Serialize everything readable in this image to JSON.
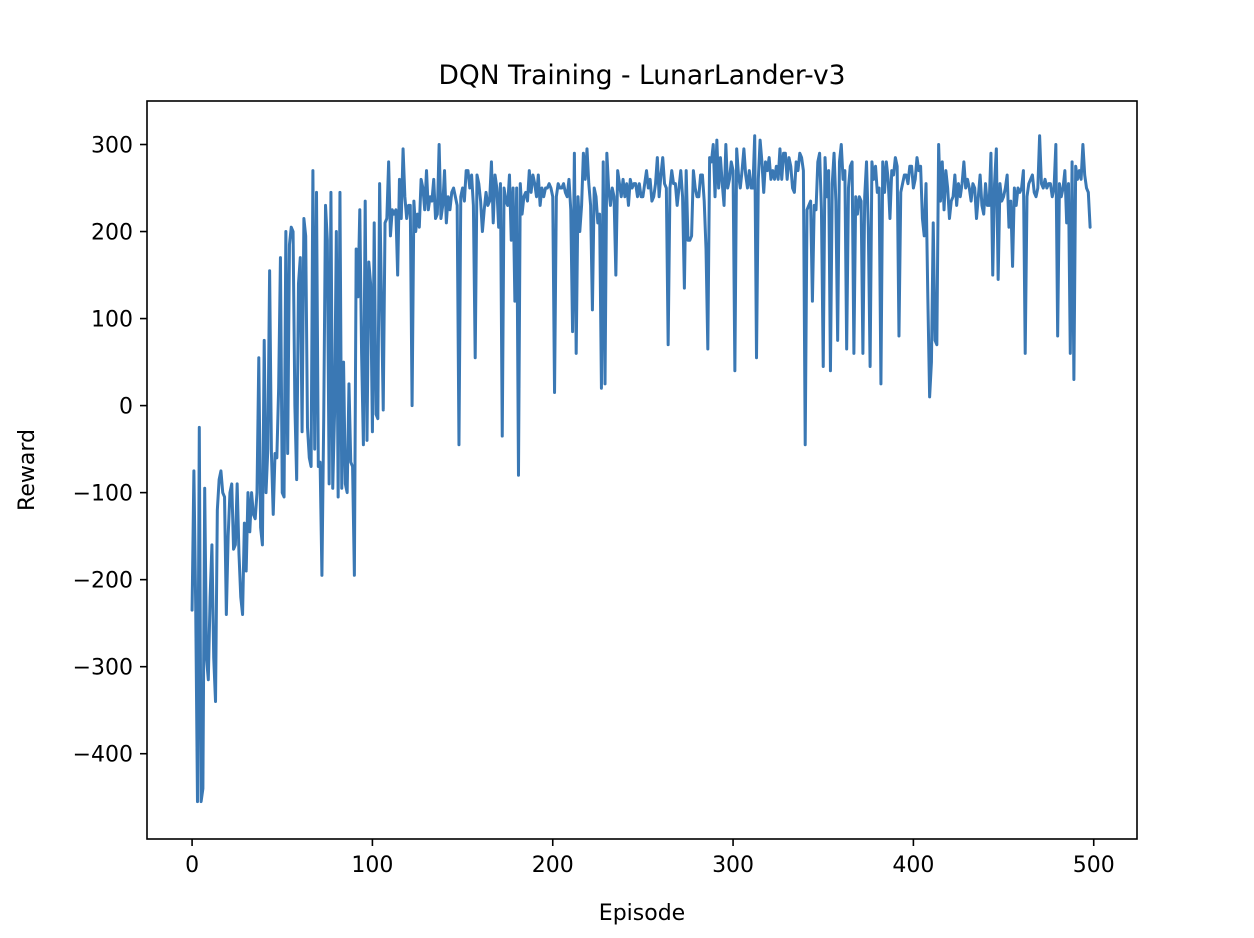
{
  "chart_data": {
    "type": "line",
    "title": "DQN Training - LunarLander-v3",
    "xlabel": "Episode",
    "ylabel": "Reward",
    "xlim": [
      -25,
      524
    ],
    "ylim": [
      -498,
      350
    ],
    "xticks": [
      0,
      100,
      200,
      300,
      400,
      500
    ],
    "yticks": [
      -400,
      -300,
      -200,
      -100,
      0,
      100,
      200,
      300
    ],
    "grid": false,
    "legend": "none",
    "line_color": "#3a78b4",
    "series": [
      {
        "values": [
          -235,
          -75,
          -230,
          -455,
          -25,
          -455,
          -440,
          -95,
          -290,
          -315,
          -220,
          -160,
          -290,
          -340,
          -120,
          -85,
          -75,
          -100,
          -105,
          -240,
          -150,
          -100,
          -90,
          -165,
          -160,
          -90,
          -170,
          -220,
          -240,
          -135,
          -190,
          -100,
          -145,
          -100,
          -125,
          -130,
          -100,
          55,
          -140,
          -160,
          75,
          -100,
          -50,
          155,
          -55,
          -125,
          -55,
          -60,
          20,
          170,
          -100,
          -105,
          200,
          -55,
          185,
          205,
          200,
          0,
          -85,
          140,
          170,
          -30,
          215,
          195,
          -25,
          -60,
          -70,
          270,
          -50,
          245,
          -70,
          -65,
          -195,
          -15,
          230,
          190,
          -90,
          245,
          -95,
          -10,
          200,
          -105,
          245,
          -95,
          50,
          -90,
          -100,
          25,
          -65,
          -70,
          -195,
          180,
          125,
          225,
          60,
          -45,
          235,
          -40,
          165,
          140,
          -30,
          210,
          -10,
          -15,
          255,
          125,
          -5,
          210,
          215,
          280,
          195,
          225,
          220,
          225,
          150,
          260,
          215,
          295,
          240,
          215,
          230,
          230,
          0,
          235,
          200,
          220,
          205,
          260,
          250,
          225,
          270,
          225,
          240,
          235,
          260,
          215,
          220,
          300,
          215,
          230,
          270,
          210,
          240,
          225,
          245,
          250,
          240,
          230,
          -45,
          240,
          250,
          235,
          270,
          270,
          250,
          265,
          230,
          55,
          265,
          255,
          235,
          200,
          225,
          245,
          230,
          235,
          280,
          210,
          265,
          250,
          205,
          255,
          -35,
          250,
          235,
          230,
          265,
          190,
          250,
          120,
          250,
          -80,
          255,
          220,
          240,
          245,
          235,
          270,
          245,
          265,
          255,
          240,
          265,
          230,
          250,
          240,
          250,
          250,
          255,
          250,
          240,
          15,
          240,
          255,
          250,
          250,
          255,
          245,
          240,
          260,
          225,
          85,
          290,
          60,
          240,
          200,
          230,
          290,
          260,
          295,
          255,
          230,
          110,
          250,
          240,
          210,
          220,
          20,
          280,
          25,
          290,
          250,
          230,
          250,
          240,
          150,
          270,
          255,
          240,
          260,
          240,
          255,
          230,
          260,
          250,
          255,
          255,
          240,
          255,
          240,
          240,
          255,
          270,
          250,
          260,
          235,
          240,
          255,
          285,
          240,
          265,
          285,
          255,
          250,
          70,
          250,
          270,
          255,
          255,
          230,
          250,
          270,
          240,
          135,
          270,
          190,
          190,
          195,
          270,
          250,
          240,
          240,
          265,
          265,
          235,
          180,
          65,
          285,
          280,
          300,
          240,
          305,
          250,
          285,
          255,
          230,
          300,
          250,
          260,
          280,
          270,
          40,
          295,
          265,
          250,
          270,
          295,
          265,
          250,
          270,
          250,
          250,
          310,
          55,
          260,
          305,
          280,
          245,
          280,
          270,
          285,
          260,
          270,
          260,
          275,
          260,
          295,
          260,
          290,
          290,
          260,
          285,
          275,
          250,
          245,
          280,
          270,
          290,
          285,
          270,
          -45,
          225,
          230,
          235,
          120,
          230,
          225,
          280,
          290,
          225,
          45,
          285,
          240,
          270,
          40,
          255,
          290,
          235,
          75,
          280,
          300,
          260,
          270,
          65,
          250,
          275,
          280,
          60,
          240,
          220,
          240,
          235,
          60,
          240,
          280,
          205,
          45,
          280,
          260,
          275,
          245,
          250,
          25,
          280,
          245,
          280,
          260,
          215,
          270,
          265,
          285,
          275,
          80,
          245,
          255,
          265,
          265,
          255,
          275,
          275,
          250,
          260,
          285,
          270,
          275,
          215,
          195,
          255,
          125,
          10,
          50,
          210,
          75,
          70,
          300,
          235,
          280,
          225,
          270,
          250,
          215,
          235,
          240,
          265,
          230,
          255,
          240,
          255,
          280,
          250,
          260,
          250,
          235,
          255,
          250,
          215,
          240,
          265,
          230,
          220,
          255,
          230,
          230,
          290,
          150,
          255,
          295,
          145,
          255,
          235,
          240,
          250,
          265,
          205,
          235,
          160,
          250,
          230,
          250,
          245,
          250,
          270,
          60,
          240,
          255,
          260,
          265,
          245,
          240,
          250,
          310,
          255,
          250,
          260,
          250,
          255,
          255,
          240,
          250,
          300,
          80,
          255,
          240,
          250,
          270,
          210,
          255,
          60,
          280,
          30,
          275,
          260,
          270,
          260,
          300,
          265,
          250,
          245,
          205
        ]
      }
    ]
  }
}
